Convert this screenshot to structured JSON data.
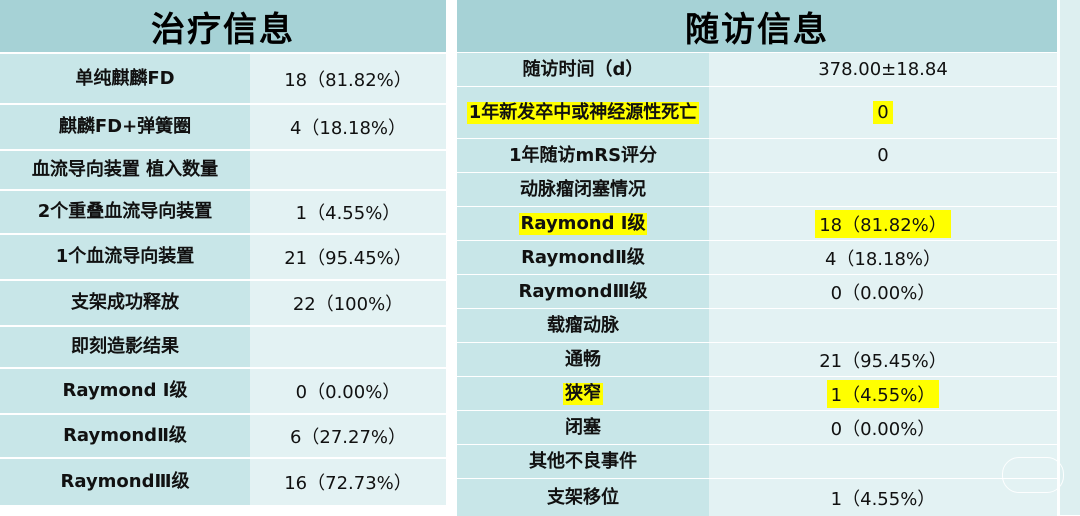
{
  "left": {
    "title": "治疗信息",
    "rows": [
      {
        "label": "单纯麒麟FD",
        "value": "18（81.82%）"
      },
      {
        "label": "麒麟FD+弹簧圈",
        "value": "4（18.18%）"
      },
      {
        "label": "血流导向装置 植入数量",
        "value": ""
      },
      {
        "label": "2个重叠血流导向装置",
        "value": "1（4.55%）"
      },
      {
        "label": "1个血流导向装置",
        "value": "21（95.45%）"
      },
      {
        "label": "支架成功释放",
        "value": "22（100%）"
      },
      {
        "label": "即刻造影结果",
        "value": ""
      },
      {
        "label": "Raymond Ⅰ级",
        "value": "0（0.00%）"
      },
      {
        "label": "RaymondⅡ级",
        "value": "6（27.27%）"
      },
      {
        "label": "RaymondⅢ级",
        "value": "16（72.73%）"
      }
    ]
  },
  "right": {
    "title": "随访信息",
    "rows": [
      {
        "label": "随访时间（d）",
        "value": "378.00±18.84",
        "highlight": false
      },
      {
        "label": "1年新发卒中或神经源性死亡",
        "value": "0",
        "highlight": true
      },
      {
        "label": "1年随访mRS评分",
        "value": "0",
        "highlight": false
      },
      {
        "label": "动脉瘤闭塞情况",
        "value": "",
        "highlight": false
      },
      {
        "label": "Raymond Ⅰ级",
        "value": "18（81.82%）",
        "highlight": true
      },
      {
        "label": "RaymondⅡ级",
        "value": "4（18.18%）",
        "highlight": false
      },
      {
        "label": "RaymondⅢ级",
        "value": "0（0.00%）",
        "highlight": false
      },
      {
        "label": "载瘤动脉",
        "value": "",
        "highlight": false
      },
      {
        "label": "通畅",
        "value": "21（95.45%）",
        "highlight": false
      },
      {
        "label": "狭窄",
        "value": "1（4.55%）",
        "highlight": true
      },
      {
        "label": "闭塞",
        "value": "0（0.00%）",
        "highlight": false
      },
      {
        "label": "其他不良事件",
        "value": "",
        "highlight": false
      },
      {
        "label": "支架移位",
        "value": "1（4.55%）",
        "highlight": false
      }
    ]
  },
  "colors": {
    "title_bg": "#a6d2d6",
    "label_bg": "#c8e6e8",
    "value_bg": "#e3f2f3",
    "highlight": "#ffff00"
  }
}
